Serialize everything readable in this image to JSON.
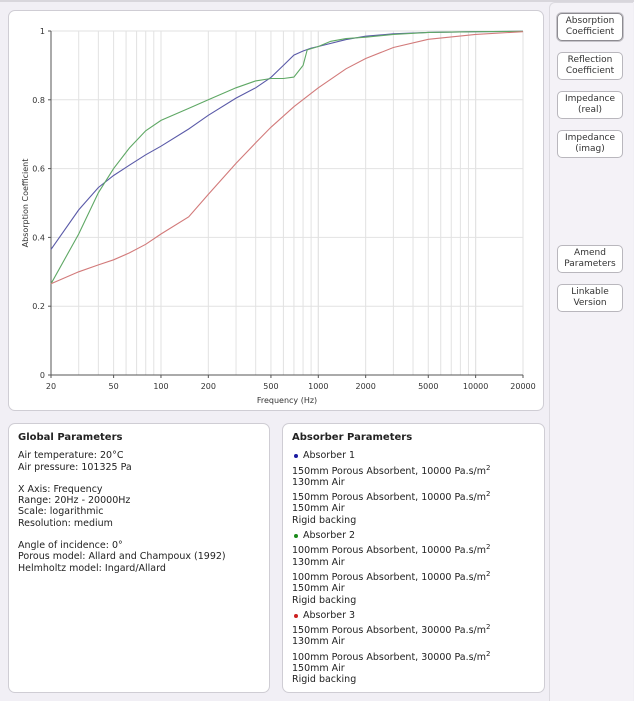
{
  "side_buttons": [
    {
      "label1": "Absorption",
      "label2": "Coefficient",
      "active": true
    },
    {
      "label1": "Reflection",
      "label2": "Coefficient",
      "active": false
    },
    {
      "label1": "Impedance",
      "label2": "(real)",
      "active": false
    },
    {
      "label1": "Impedance",
      "label2": "(imag)",
      "active": false
    },
    {
      "label1": "Amend",
      "label2": "Parameters",
      "active": false
    },
    {
      "label1": "Linkable",
      "label2": "Version",
      "active": false
    }
  ],
  "global": {
    "title": "Global Parameters",
    "lines": [
      [
        "Air temperature: 20°C",
        "Air pressure: 101325 Pa"
      ],
      [
        "X Axis: Frequency",
        "Range: 20Hz - 20000Hz",
        "Scale: logarithmic",
        "Resolution: medium"
      ],
      [
        "Angle of incidence: 0°",
        "Porous model: Allard and Champoux (1992)",
        "Helmholtz model: Ingard/Allard"
      ]
    ]
  },
  "absorbers": {
    "title": "Absorber Parameters",
    "items": [
      {
        "name": "Absorber 1",
        "color": "#1a1aa0",
        "layers": [
          [
            "150mm Porous Absorbent, 10000 Pa.s/m",
            "130mm Air"
          ],
          [
            "150mm Porous Absorbent, 10000 Pa.s/m",
            "150mm Air",
            "Rigid backing"
          ]
        ]
      },
      {
        "name": "Absorber 2",
        "color": "#1a8a1a",
        "layers": [
          [
            "100mm Porous Absorbent, 10000 Pa.s/m",
            "130mm Air"
          ],
          [
            "100mm Porous Absorbent, 10000 Pa.s/m",
            "150mm Air",
            "Rigid backing"
          ]
        ]
      },
      {
        "name": "Absorber 3",
        "color": "#cc2020",
        "layers": [
          [
            "150mm Porous Absorbent, 30000 Pa.s/m",
            "130mm Air"
          ],
          [
            "100mm Porous Absorbent, 30000 Pa.s/m",
            "150mm Air",
            "Rigid backing"
          ]
        ]
      }
    ],
    "unit_superscript": "2"
  },
  "chart_data": {
    "type": "line",
    "xlabel": "Frequency (Hz)",
    "ylabel": "Absorption Coefficient",
    "xscale": "log",
    "xlim": [
      20,
      20000
    ],
    "ylim": [
      0,
      1
    ],
    "xticks": [
      "20",
      "50",
      "100",
      "200",
      "500",
      "1000",
      "2000",
      "5000",
      "10000",
      "20000"
    ],
    "yticks": [
      "0",
      "0.2",
      "0.4",
      "0.6",
      "0.8",
      "1"
    ],
    "grid": true,
    "series": [
      {
        "color": "#5a5aa8",
        "points": [
          [
            20,
            0.365
          ],
          [
            30,
            0.48
          ],
          [
            40,
            0.545
          ],
          [
            50,
            0.58
          ],
          [
            63,
            0.61
          ],
          [
            80,
            0.64
          ],
          [
            100,
            0.665
          ],
          [
            150,
            0.715
          ],
          [
            200,
            0.755
          ],
          [
            300,
            0.805
          ],
          [
            400,
            0.835
          ],
          [
            500,
            0.865
          ],
          [
            600,
            0.9
          ],
          [
            700,
            0.93
          ],
          [
            800,
            0.942
          ],
          [
            900,
            0.95
          ],
          [
            1000,
            0.955
          ],
          [
            1500,
            0.975
          ],
          [
            2000,
            0.985
          ],
          [
            3000,
            0.992
          ],
          [
            5000,
            0.996
          ],
          [
            10000,
            0.998
          ],
          [
            20000,
            0.999
          ]
        ]
      },
      {
        "color": "#5fa865",
        "points": [
          [
            20,
            0.265
          ],
          [
            30,
            0.41
          ],
          [
            40,
            0.53
          ],
          [
            50,
            0.6
          ],
          [
            63,
            0.66
          ],
          [
            80,
            0.71
          ],
          [
            100,
            0.74
          ],
          [
            150,
            0.775
          ],
          [
            200,
            0.8
          ],
          [
            300,
            0.835
          ],
          [
            400,
            0.855
          ],
          [
            500,
            0.862
          ],
          [
            600,
            0.862
          ],
          [
            700,
            0.866
          ],
          [
            800,
            0.9
          ],
          [
            850,
            0.945
          ],
          [
            1000,
            0.955
          ],
          [
            1200,
            0.97
          ],
          [
            1500,
            0.978
          ],
          [
            2000,
            0.982
          ],
          [
            3000,
            0.99
          ],
          [
            5000,
            0.996
          ],
          [
            10000,
            0.998
          ],
          [
            20000,
            0.999
          ]
        ]
      },
      {
        "color": "#d27a7a",
        "points": [
          [
            20,
            0.265
          ],
          [
            30,
            0.3
          ],
          [
            40,
            0.32
          ],
          [
            50,
            0.335
          ],
          [
            63,
            0.355
          ],
          [
            80,
            0.38
          ],
          [
            100,
            0.41
          ],
          [
            150,
            0.46
          ],
          [
            200,
            0.525
          ],
          [
            300,
            0.615
          ],
          [
            400,
            0.675
          ],
          [
            500,
            0.72
          ],
          [
            700,
            0.78
          ],
          [
            1000,
            0.835
          ],
          [
            1500,
            0.89
          ],
          [
            2000,
            0.92
          ],
          [
            3000,
            0.952
          ],
          [
            5000,
            0.976
          ],
          [
            10000,
            0.99
          ],
          [
            20000,
            0.998
          ]
        ]
      }
    ]
  }
}
